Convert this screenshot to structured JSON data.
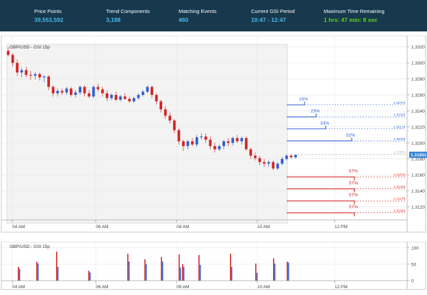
{
  "header": {
    "stats": [
      {
        "label": "Price Points",
        "value": "39,553,592"
      },
      {
        "label": "Trend Components",
        "value": "3,188"
      },
      {
        "label": "Matching Events",
        "value": "460"
      },
      {
        "label": "Current GSI Period",
        "value": "10:47 - 12:47"
      },
      {
        "label": "Maximum Time Remaining",
        "value": "1 hrs: 47 min: 8 sec"
      }
    ]
  },
  "chart_data": [
    {
      "type": "candlestick",
      "title": "GBP/USD - GSI 15p",
      "x_ticks": [
        "04 AM",
        "06 AM",
        "08 AM",
        "10 AM",
        "12 PM"
      ],
      "y_ticks": [
        "1.3320",
        "1.3300",
        "1.3280",
        "1.3260",
        "1.3240",
        "1.3220",
        "1.3200",
        "1.3180",
        "1.3160",
        "1.3140",
        "1.3120"
      ],
      "ylim": [
        1.3108,
        1.333
      ],
      "current_price": "1.31851",
      "candles": [
        {
          "o": 1.3315,
          "h": 1.332,
          "l": 1.3308,
          "c": 1.331
        },
        {
          "o": 1.331,
          "h": 1.3312,
          "l": 1.3296,
          "c": 1.33
        },
        {
          "o": 1.33,
          "h": 1.3304,
          "l": 1.3284,
          "c": 1.3288
        },
        {
          "o": 1.3288,
          "h": 1.3294,
          "l": 1.3282,
          "c": 1.3291
        },
        {
          "o": 1.3291,
          "h": 1.3295,
          "l": 1.3282,
          "c": 1.3285
        },
        {
          "o": 1.3285,
          "h": 1.329,
          "l": 1.3279,
          "c": 1.3284
        },
        {
          "o": 1.3284,
          "h": 1.3289,
          "l": 1.3279,
          "c": 1.3286
        },
        {
          "o": 1.3286,
          "h": 1.3288,
          "l": 1.3278,
          "c": 1.3282
        },
        {
          "o": 1.3282,
          "h": 1.3285,
          "l": 1.3276,
          "c": 1.3283
        },
        {
          "o": 1.3283,
          "h": 1.3285,
          "l": 1.3266,
          "c": 1.327
        },
        {
          "o": 1.327,
          "h": 1.3272,
          "l": 1.3258,
          "c": 1.3262
        },
        {
          "o": 1.3262,
          "h": 1.3268,
          "l": 1.3258,
          "c": 1.3265
        },
        {
          "o": 1.3265,
          "h": 1.3268,
          "l": 1.326,
          "c": 1.3263
        },
        {
          "o": 1.3263,
          "h": 1.327,
          "l": 1.326,
          "c": 1.3268
        },
        {
          "o": 1.3268,
          "h": 1.327,
          "l": 1.3258,
          "c": 1.326
        },
        {
          "o": 1.326,
          "h": 1.3266,
          "l": 1.3257,
          "c": 1.3263
        },
        {
          "o": 1.3263,
          "h": 1.3272,
          "l": 1.326,
          "c": 1.327
        },
        {
          "o": 1.327,
          "h": 1.3272,
          "l": 1.3258,
          "c": 1.3262
        },
        {
          "o": 1.3262,
          "h": 1.3266,
          "l": 1.3256,
          "c": 1.3258
        },
        {
          "o": 1.3258,
          "h": 1.3272,
          "l": 1.3256,
          "c": 1.327
        },
        {
          "o": 1.327,
          "h": 1.3274,
          "l": 1.3264,
          "c": 1.3267
        },
        {
          "o": 1.3267,
          "h": 1.327,
          "l": 1.3258,
          "c": 1.3262
        },
        {
          "o": 1.3262,
          "h": 1.3266,
          "l": 1.3252,
          "c": 1.3256
        },
        {
          "o": 1.3256,
          "h": 1.3262,
          "l": 1.3253,
          "c": 1.326
        },
        {
          "o": 1.326,
          "h": 1.3264,
          "l": 1.3252,
          "c": 1.3254
        },
        {
          "o": 1.3254,
          "h": 1.326,
          "l": 1.3252,
          "c": 1.3258
        },
        {
          "o": 1.3258,
          "h": 1.3262,
          "l": 1.3254,
          "c": 1.3255
        },
        {
          "o": 1.3255,
          "h": 1.3258,
          "l": 1.325,
          "c": 1.3252
        },
        {
          "o": 1.3252,
          "h": 1.3258,
          "l": 1.325,
          "c": 1.3256
        },
        {
          "o": 1.3256,
          "h": 1.3262,
          "l": 1.3254,
          "c": 1.326
        },
        {
          "o": 1.326,
          "h": 1.3266,
          "l": 1.3258,
          "c": 1.3264
        },
        {
          "o": 1.3264,
          "h": 1.3272,
          "l": 1.3262,
          "c": 1.327
        },
        {
          "o": 1.327,
          "h": 1.3272,
          "l": 1.3256,
          "c": 1.326
        },
        {
          "o": 1.326,
          "h": 1.3262,
          "l": 1.3248,
          "c": 1.3252
        },
        {
          "o": 1.3252,
          "h": 1.3254,
          "l": 1.3238,
          "c": 1.3242
        },
        {
          "o": 1.3242,
          "h": 1.3246,
          "l": 1.323,
          "c": 1.3234
        },
        {
          "o": 1.3234,
          "h": 1.3238,
          "l": 1.3224,
          "c": 1.3228
        },
        {
          "o": 1.3228,
          "h": 1.323,
          "l": 1.3212,
          "c": 1.3216
        },
        {
          "o": 1.3216,
          "h": 1.3218,
          "l": 1.3198,
          "c": 1.3202
        },
        {
          "o": 1.3202,
          "h": 1.3204,
          "l": 1.319,
          "c": 1.3196
        },
        {
          "o": 1.3196,
          "h": 1.3204,
          "l": 1.3192,
          "c": 1.3202
        },
        {
          "o": 1.3202,
          "h": 1.3206,
          "l": 1.3196,
          "c": 1.3198
        },
        {
          "o": 1.3198,
          "h": 1.321,
          "l": 1.3195,
          "c": 1.3207
        },
        {
          "o": 1.3207,
          "h": 1.3212,
          "l": 1.3204,
          "c": 1.3208
        },
        {
          "o": 1.3208,
          "h": 1.3212,
          "l": 1.32,
          "c": 1.3204
        },
        {
          "o": 1.3204,
          "h": 1.3208,
          "l": 1.3192,
          "c": 1.3196
        },
        {
          "o": 1.3196,
          "h": 1.32,
          "l": 1.3188,
          "c": 1.3192
        },
        {
          "o": 1.3192,
          "h": 1.3198,
          "l": 1.319,
          "c": 1.3196
        },
        {
          "o": 1.3196,
          "h": 1.3204,
          "l": 1.3192,
          "c": 1.3202
        },
        {
          "o": 1.3202,
          "h": 1.3206,
          "l": 1.3196,
          "c": 1.32
        },
        {
          "o": 1.32,
          "h": 1.3208,
          "l": 1.3197,
          "c": 1.3206
        },
        {
          "o": 1.3206,
          "h": 1.321,
          "l": 1.32,
          "c": 1.3202
        },
        {
          "o": 1.3202,
          "h": 1.3208,
          "l": 1.3198,
          "c": 1.3206
        },
        {
          "o": 1.3206,
          "h": 1.3208,
          "l": 1.319,
          "c": 1.3192
        },
        {
          "o": 1.3192,
          "h": 1.3194,
          "l": 1.318,
          "c": 1.3184
        },
        {
          "o": 1.3184,
          "h": 1.3188,
          "l": 1.3178,
          "c": 1.3181
        },
        {
          "o": 1.3181,
          "h": 1.3184,
          "l": 1.3172,
          "c": 1.3176
        },
        {
          "o": 1.3176,
          "h": 1.318,
          "l": 1.317,
          "c": 1.3174
        },
        {
          "o": 1.3174,
          "h": 1.3178,
          "l": 1.317,
          "c": 1.3176
        },
        {
          "o": 1.3176,
          "h": 1.3178,
          "l": 1.3166,
          "c": 1.3168
        },
        {
          "o": 1.3168,
          "h": 1.3176,
          "l": 1.3166,
          "c": 1.3174
        },
        {
          "o": 1.3174,
          "h": 1.3182,
          "l": 1.3172,
          "c": 1.318
        },
        {
          "o": 1.318,
          "h": 1.3186,
          "l": 1.3178,
          "c": 1.3184
        },
        {
          "o": 1.3184,
          "h": 1.3186,
          "l": 1.318,
          "c": 1.3182
        },
        {
          "o": 1.3182,
          "h": 1.3186,
          "l": 1.318,
          "c": 1.3185
        }
      ],
      "projections": [
        {
          "pct": "15%",
          "price": "1.32475",
          "direction": "up"
        },
        {
          "pct": "23%",
          "price": "1.32325",
          "direction": "up"
        },
        {
          "pct": "33%",
          "price": "1.32175",
          "direction": "up"
        },
        {
          "pct": "52%",
          "price": "1.32025",
          "direction": "up"
        },
        {
          "pct": "57%",
          "price": "1.31575",
          "direction": "down"
        },
        {
          "pct": "57%",
          "price": "1.31425",
          "direction": "down"
        },
        {
          "pct": "57%",
          "price": "1.31275",
          "direction": "down"
        },
        {
          "pct": "57%",
          "price": "1.31125",
          "direction": "down"
        }
      ],
      "colors": {
        "up": "#2f5fcf",
        "down": "#d42424"
      }
    },
    {
      "type": "bar",
      "title": "GBP/USD - GSI 15p",
      "x_ticks": [
        "04 AM",
        "06 AM",
        "08 AM",
        "10 AM",
        "12 PM"
      ],
      "y_ticks": [
        "100",
        "50",
        "0"
      ],
      "ylim": [
        0,
        110
      ],
      "pairs": [
        {
          "red": 42,
          "blue": 36
        },
        {
          "red": 58,
          "blue": 52
        },
        {
          "red": 88,
          "blue": 42
        },
        {
          "red": 30,
          "blue": 25
        },
        {
          "red": 82,
          "blue": 58
        },
        {
          "red": 65,
          "blue": 50
        },
        {
          "red": 72,
          "blue": 58
        },
        {
          "red": 80,
          "blue": 40
        },
        {
          "red": 50,
          "blue": 42
        },
        {
          "red": 78,
          "blue": 48
        },
        {
          "red": 82,
          "blue": 42
        },
        {
          "red": 52,
          "blue": 24
        },
        {
          "red": 68,
          "blue": 52
        },
        {
          "red": 58,
          "blue": 55
        }
      ]
    }
  ]
}
